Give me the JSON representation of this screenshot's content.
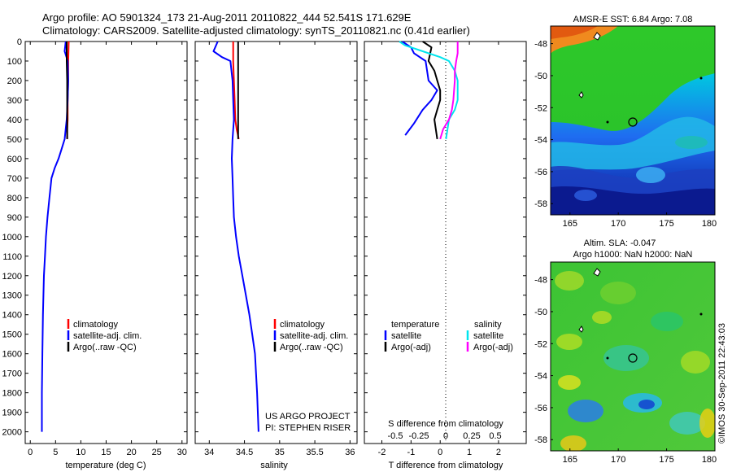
{
  "title_line1": "Argo profile: AO 5901324_173 21-Aug-2011 20110822_444 52.541S 171.629E",
  "title_line2": "Climatology: CARS2009. Satellite-adjusted climatology: synTS_20110821.nc (0.41d earlier)",
  "watermark": "©IMOS 30-Sep-2011 22:43:03",
  "chart_data": [
    {
      "type": "line",
      "xlabel": "temperature (deg C)",
      "ylabel": "",
      "xlim": [
        -1,
        31
      ],
      "ylim": [
        2060,
        0
      ],
      "xticks": [
        "0",
        "5",
        "10",
        "15",
        "20",
        "25",
        "30"
      ],
      "xtick_values": [
        0,
        5,
        10,
        15,
        20,
        25,
        30
      ],
      "yticks": [
        "0",
        "100",
        "200",
        "300",
        "400",
        "500",
        "600",
        "700",
        "800",
        "900",
        "1000",
        "1100",
        "1200",
        "1300",
        "1400",
        "1500",
        "1600",
        "1700",
        "1800",
        "1900",
        "2000"
      ],
      "legend": {
        "items": [
          "climatology",
          "satellite-adj. clim.",
          "Argo(..raw -QC)"
        ],
        "colors": [
          "#ff0000",
          "#0000ff",
          "#000000"
        ]
      },
      "series": [
        {
          "name": "climatology",
          "color": "#ff0000",
          "x": [
            7.6,
            7.5,
            7.5,
            7.4,
            7.4,
            7.3,
            7.3
          ],
          "y": [
            0,
            100,
            200,
            300,
            400,
            450,
            500
          ]
        },
        {
          "name": "satellite-adj. clim.",
          "color": "#0000ff",
          "x": [
            7.0,
            6.8,
            7.4,
            7.5,
            7.4,
            7.2,
            6.8,
            6.2,
            5.6,
            4.8,
            4.2,
            3.8,
            3.4,
            3.1,
            2.9,
            2.7,
            2.5,
            2.4,
            2.3,
            2.3,
            2.3
          ],
          "y": [
            0,
            50,
            100,
            200,
            300,
            400,
            500,
            550,
            600,
            650,
            700,
            800,
            900,
            1000,
            1100,
            1200,
            1400,
            1600,
            1800,
            1900,
            2000
          ]
        },
        {
          "name": "Argo(..raw -QC)",
          "color": "#000000",
          "x": [
            7.2,
            7.2,
            7.3,
            7.3,
            7.3,
            7.3
          ],
          "y": [
            0,
            100,
            200,
            300,
            400,
            500
          ]
        }
      ]
    },
    {
      "type": "line",
      "xlabel": "salinity",
      "xlim": [
        33.8,
        36.1
      ],
      "ylim": [
        2060,
        0
      ],
      "xticks": [
        "34",
        "34.5",
        "35",
        "35.5",
        "36"
      ],
      "xtick_values": [
        34,
        34.5,
        35,
        35.5,
        36
      ],
      "legend": {
        "items": [
          "climatology",
          "satellite-adj. clim.",
          "Argo(..raw -QC)"
        ],
        "colors": [
          "#ff0000",
          "#0000ff",
          "#000000"
        ]
      },
      "annotations": [
        "US ARGO PROJECT",
        "PI: STEPHEN RISER"
      ],
      "series": [
        {
          "name": "climatology",
          "color": "#ff0000",
          "x": [
            34.34,
            34.34,
            34.35,
            34.36,
            34.37,
            34.39,
            34.42
          ],
          "y": [
            0,
            100,
            200,
            300,
            400,
            450,
            500
          ]
        },
        {
          "name": "satellite-adj. clim.",
          "color": "#0000ff",
          "x": [
            34.12,
            34.06,
            34.18,
            34.3,
            34.33,
            34.34,
            34.35,
            34.33,
            34.32,
            34.33,
            34.34,
            34.35,
            34.38,
            34.42,
            34.47,
            34.52,
            34.57,
            34.61,
            34.65,
            34.68,
            34.7
          ],
          "y": [
            0,
            50,
            80,
            100,
            200,
            300,
            400,
            500,
            600,
            700,
            800,
            900,
            1000,
            1100,
            1200,
            1300,
            1400,
            1500,
            1600,
            1800,
            2000
          ]
        },
        {
          "name": "Argo(..raw -QC)",
          "color": "#000000",
          "x": [
            34.41,
            34.41,
            34.41,
            34.41,
            34.41,
            34.41
          ],
          "y": [
            0,
            100,
            200,
            300,
            400,
            500
          ]
        }
      ]
    },
    {
      "type": "line",
      "xlabel": "T difference from climatology",
      "xlabel_top": "S difference from climatology",
      "xlim": [
        -2.6,
        2.95
      ],
      "ylim": [
        2060,
        0
      ],
      "xticks": [
        "-2",
        "-1",
        "0",
        "1",
        "2"
      ],
      "xtick_values": [
        -2,
        -1,
        0,
        1,
        2
      ],
      "s_ticks": [
        "-0.5",
        "-0.25",
        "0",
        "0.25",
        "0.5"
      ],
      "legend": {
        "temperature_header": "temperature",
        "salinity_header": "salinity",
        "temperature_items": [
          "satellite",
          "Argo(-adj)"
        ],
        "temperature_colors": [
          "#0000ff",
          "#000000"
        ],
        "salinity_items": [
          "satellite",
          "Argo(-adj)"
        ],
        "salinity_colors": [
          "#00e5ee",
          "#ff00ff"
        ]
      },
      "series": [
        {
          "name": "satellite",
          "group": "temperature",
          "color": "#0000ff",
          "x": [
            -1.3,
            -1.0,
            -0.9,
            -0.5,
            -0.4,
            -0.1,
            -0.3,
            -0.6,
            -0.9,
            -1.2
          ],
          "y": [
            0,
            30,
            60,
            100,
            200,
            250,
            300,
            350,
            420,
            480
          ]
        },
        {
          "name": "Argo(-adj)",
          "group": "temperature",
          "color": "#000000",
          "x": [
            -0.6,
            -0.3,
            -0.4,
            -0.2,
            -0.1,
            0.0,
            0.0,
            -0.1,
            -0.2,
            -0.1
          ],
          "y": [
            0,
            30,
            100,
            150,
            200,
            250,
            300,
            350,
            400,
            500
          ]
        },
        {
          "name": "satellite",
          "group": "salinity",
          "color": "#00e5ee",
          "x": [
            -1.4,
            -1.2,
            -0.6,
            0.0,
            0.3,
            0.5,
            0.6,
            0.6,
            0.5,
            0.3,
            0.2
          ],
          "y": [
            0,
            20,
            50,
            80,
            100,
            150,
            200,
            300,
            350,
            400,
            500
          ]
        },
        {
          "name": "Argo(-adj)",
          "group": "salinity",
          "color": "#ff00ff",
          "x": [
            0.6,
            0.6,
            0.55,
            0.5,
            0.5,
            0.45,
            0.4,
            0.3,
            0.1,
            0.0
          ],
          "y": [
            0,
            60,
            100,
            150,
            200,
            300,
            350,
            400,
            450,
            500
          ]
        }
      ]
    }
  ],
  "maps": [
    {
      "title": "AMSR-E SST: 6.84 Argo: 7.08",
      "xticks": [
        "165",
        "170",
        "175",
        "180"
      ],
      "yticks": [
        "-48",
        "-50",
        "-52",
        "-54",
        "-56",
        "-58"
      ]
    },
    {
      "title_line1": "Altim. SLA: -0.047",
      "title_line2": "Argo h1000: NaN h2000: NaN",
      "xticks": [
        "165",
        "170",
        "175",
        "180"
      ],
      "yticks": [
        "-48",
        "-50",
        "-52",
        "-54",
        "-56",
        "-58"
      ]
    }
  ]
}
